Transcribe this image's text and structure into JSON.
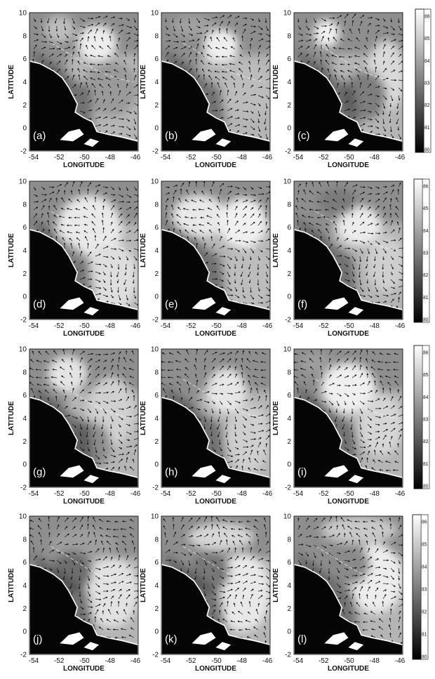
{
  "figure": {
    "panels": [
      {
        "letter": "(a)"
      },
      {
        "letter": "(b)"
      },
      {
        "letter": "(c)"
      },
      {
        "letter": "(d)"
      },
      {
        "letter": "(e)"
      },
      {
        "letter": "(f)"
      },
      {
        "letter": "(g)"
      },
      {
        "letter": "(h)"
      },
      {
        "letter": "(i)"
      },
      {
        "letter": "(j)"
      },
      {
        "letter": "(k)"
      },
      {
        "letter": "(l)"
      }
    ],
    "xlabel": "LONGITUDE",
    "ylabel": "LATITUDE",
    "x_ticks": [
      "-54",
      "-52",
      "-50",
      "-48",
      "-46"
    ],
    "y_ticks": [
      "10",
      "8",
      "6",
      "4",
      "2",
      "0",
      "-2"
    ],
    "colorbar_ticks": [
      "36",
      "35",
      "34",
      "33",
      "32",
      "31",
      "30"
    ],
    "colors": {
      "land": "#050505",
      "ocean_dark": "#3a3a3a",
      "ocean_light": "#e6e6e6",
      "coastline": "#ffffff",
      "arrows": "#111111"
    }
  }
}
